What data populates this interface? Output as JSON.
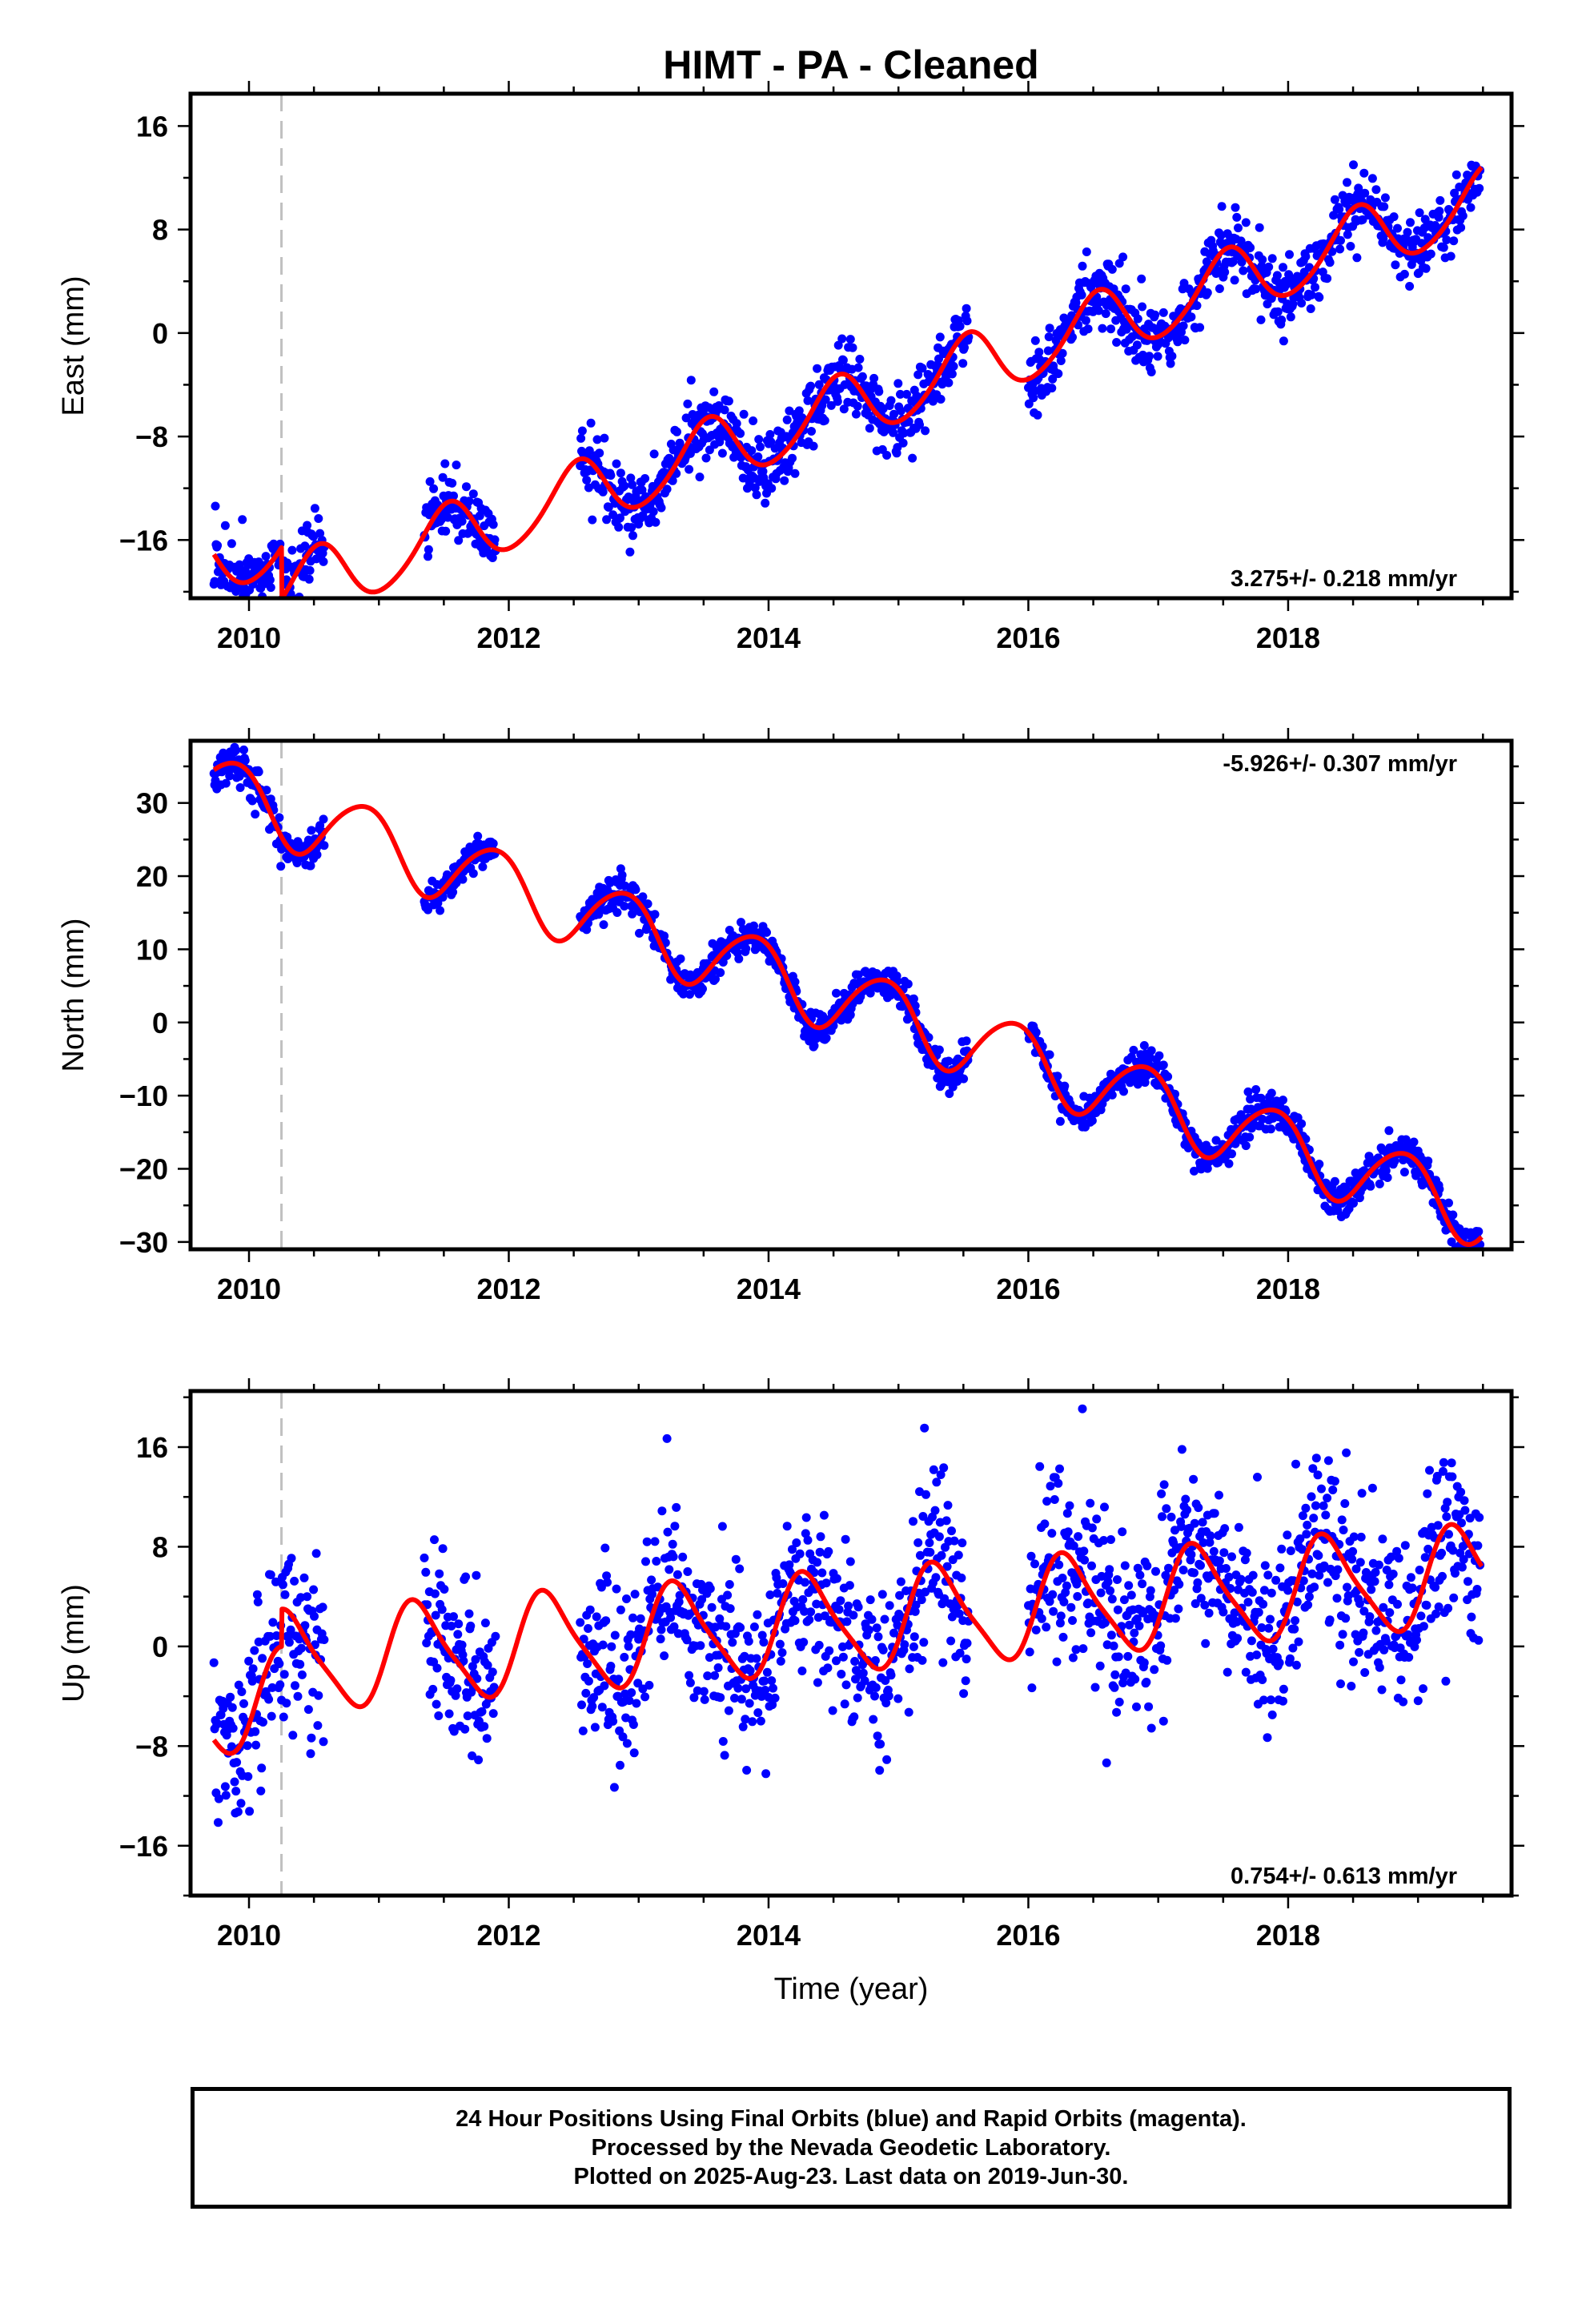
{
  "figure": {
    "title": "HIMT  - PA - Cleaned",
    "xlabel": "Time (year)",
    "footer": [
      "24 Hour Positions Using Final Orbits (blue) and Rapid Orbits (magenta).",
      "Processed by the Nevada Geodetic Laboratory.",
      "Plotted on 2025-Aug-23. Last data on 2019-Jun-30."
    ],
    "colors": {
      "data_points": "#0000ff",
      "model_fit": "#ff0000",
      "event_line": "#c0c0c0",
      "frame": "#000000"
    }
  },
  "chart_data": [
    {
      "type": "scatter",
      "panel": "east",
      "ylabel": "East (mm)",
      "rate_label": "3.275+/- 0.218 mm/yr",
      "rate_position": "bottom-right",
      "xlim": [
        2009.55,
        2019.72
      ],
      "ylim": [
        -20.5,
        18.5
      ],
      "xticks": [
        2010,
        2012,
        2014,
        2016,
        2018
      ],
      "yticks": [
        -16,
        -8,
        0,
        8,
        16
      ],
      "event_line_x": 2010.25,
      "trend": {
        "t0": 2014.5,
        "intercept": -2.12,
        "rate": 3.275
      },
      "seasonal": {
        "annual_cos": -2.5,
        "annual_sin": -0.4,
        "semiannual_cos": 0.15,
        "semiannual_sin": 0.25
      },
      "model_offsets": [
        {
          "at": 2010.25,
          "value": -4.0
        }
      ],
      "data_noise_sd": 1.3,
      "data_spans": [
        [
          2009.73,
          2010.58
        ],
        [
          2011.35,
          2011.9
        ],
        [
          2012.55,
          2015.54
        ],
        [
          2016.0,
          2019.48
        ]
      ]
    },
    {
      "type": "scatter",
      "panel": "north",
      "ylabel": "North (mm)",
      "rate_label": "-5.926+/- 0.307 mm/yr",
      "rate_position": "top-right",
      "xlim": [
        2009.55,
        2019.72
      ],
      "ylim": [
        -31,
        38.5
      ],
      "xticks": [
        2010,
        2012,
        2014,
        2016,
        2018
      ],
      "yticks": [
        -30,
        -20,
        -10,
        0,
        10,
        20,
        30
      ],
      "event_line_x": 2010.25,
      "trend": {
        "t0": 2014.5,
        "intercept": 3.7,
        "rate": -5.926
      },
      "seasonal": {
        "annual_cos": 3.5,
        "annual_sin": -3.2,
        "semiannual_cos": 0.3,
        "semiannual_sin": 0.4
      },
      "model_offsets": [],
      "data_noise_sd": 1.2,
      "data_spans": [
        [
          2009.73,
          2010.58
        ],
        [
          2011.35,
          2011.9
        ],
        [
          2012.55,
          2015.54
        ],
        [
          2016.0,
          2019.48
        ]
      ]
    },
    {
      "type": "scatter",
      "panel": "up",
      "ylabel": "Up (mm)",
      "rate_label": "0.754+/- 0.613 mm/yr",
      "rate_position": "bottom-right",
      "xlim": [
        2009.55,
        2019.72
      ],
      "ylim": [
        -20,
        20.5
      ],
      "xticks": [
        2010,
        2012,
        2014,
        2016,
        2018
      ],
      "yticks": [
        -16,
        -8,
        0,
        8,
        16
      ],
      "event_line_x": 2010.25,
      "trend": {
        "t0": 2014.5,
        "intercept": -1.1,
        "rate": 0.754
      },
      "seasonal": {
        "annual_cos": -1.2,
        "annual_sin": 3.7,
        "semiannual_cos": -0.6,
        "semiannual_sin": 0.5
      },
      "model_offsets": [
        {
          "at": 2010.25,
          "value": 3.0
        }
      ],
      "data_noise_sd": 3.6,
      "data_spans": [
        [
          2009.73,
          2010.58
        ],
        [
          2011.35,
          2011.9
        ],
        [
          2012.55,
          2015.54
        ],
        [
          2016.0,
          2019.48
        ]
      ]
    }
  ]
}
